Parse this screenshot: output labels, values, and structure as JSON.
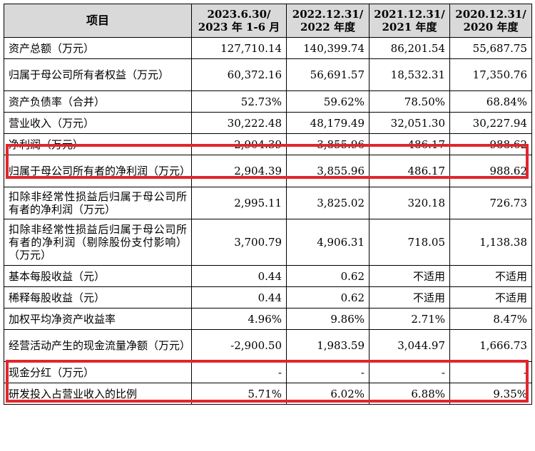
{
  "table": {
    "headers": [
      {
        "line1": "项目",
        "line2": ""
      },
      {
        "line1": "2023.6.30/",
        "line2": "2023 年 1-6 月"
      },
      {
        "line1": "2022.12.31/",
        "line2": "2022 年度"
      },
      {
        "line1": "2021.12.31/",
        "line2": "2021 年度"
      },
      {
        "line1": "2020.12.31/",
        "line2": "2020 年度"
      }
    ],
    "rows": [
      {
        "label": "资产总额（万元）",
        "values": [
          "127,710.14",
          "140,399.74",
          "86,201.54",
          "55,687.75"
        ]
      },
      {
        "label": "归属于母公司所有者权益（万元）",
        "values": [
          "60,372.16",
          "56,691.57",
          "18,532.31",
          "17,350.76"
        ]
      },
      {
        "label": "资产负债率（合并）",
        "values": [
          "52.73%",
          "59.62%",
          "78.50%",
          "68.84%"
        ]
      },
      {
        "label": "营业收入（万元）",
        "values": [
          "30,222.48",
          "48,179.49",
          "32,051.30",
          "30,227.94"
        ]
      },
      {
        "label": "净利润（万元）",
        "values": [
          "2,904.39",
          "3,855.96",
          "486.17",
          "988.62"
        ]
      },
      {
        "label": "归属于母公司所有者的净利润（万元）",
        "values": [
          "2,904.39",
          "3,855.96",
          "486.17",
          "988.62"
        ]
      },
      {
        "label": "扣除非经常性损益后归属于母公司所有者的净利润（万元）",
        "values": [
          "2,995.11",
          "3,825.02",
          "320.18",
          "726.73"
        ]
      },
      {
        "label": "扣除非经常性损益后归属于母公司所有者的净利润（剔除股份支付影响）（万元）",
        "values": [
          "3,700.79",
          "4,906.31",
          "718.05",
          "1,138.38"
        ]
      },
      {
        "label": "基本每股收益（元）",
        "values": [
          "0.44",
          "0.62",
          "不适用",
          "不适用"
        ]
      },
      {
        "label": "稀释每股收益（元）",
        "values": [
          "0.44",
          "0.62",
          "不适用",
          "不适用"
        ]
      },
      {
        "label": "加权平均净资产收益率",
        "values": [
          "4.96%",
          "9.86%",
          "2.71%",
          "8.47%"
        ]
      },
      {
        "label": "经营活动产生的现金流量净额（万元）",
        "values": [
          "-2,900.50",
          "1,983.59",
          "3,044.97",
          "1,666.73"
        ]
      },
      {
        "label": "现金分红（万元）",
        "values": [
          "-",
          "-",
          "-",
          "-"
        ]
      },
      {
        "label": "研发投入占营业收入的比例",
        "values": [
          "5.71%",
          "6.02%",
          "6.88%",
          "9.35%"
        ]
      }
    ]
  },
  "highlight_color": "#e0262d",
  "header_bg": "#d9d9d9"
}
